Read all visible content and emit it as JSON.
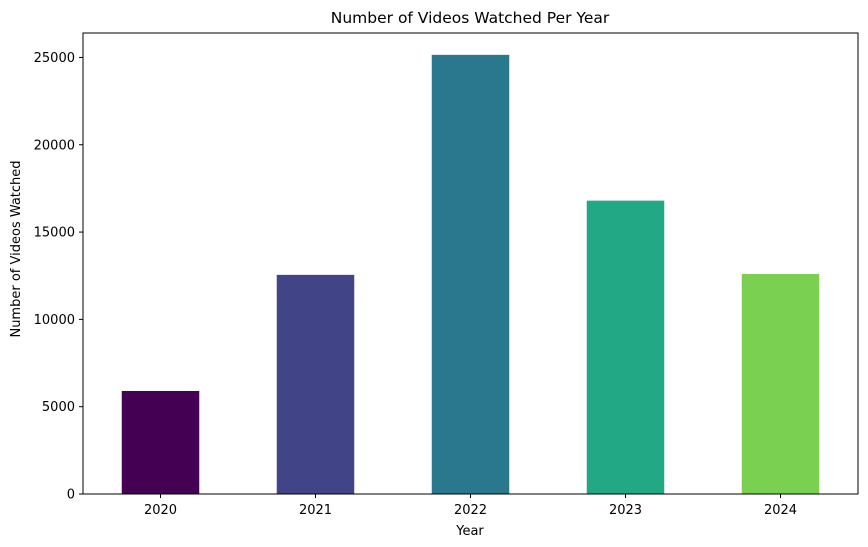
{
  "chart_data": {
    "type": "bar",
    "title": "Number of Videos Watched Per Year",
    "xlabel": "Year",
    "ylabel": "Number of Videos Watched",
    "categories": [
      "2020",
      "2021",
      "2022",
      "2023",
      "2024"
    ],
    "values": [
      5900,
      12550,
      25150,
      16800,
      12600
    ],
    "colors": [
      "#440154",
      "#414487",
      "#2a788e",
      "#22a884",
      "#7ad151"
    ],
    "ylim": [
      0,
      26400
    ],
    "yticks": [
      0,
      5000,
      10000,
      15000,
      20000,
      25000
    ],
    "grid": false,
    "legend": "none"
  }
}
